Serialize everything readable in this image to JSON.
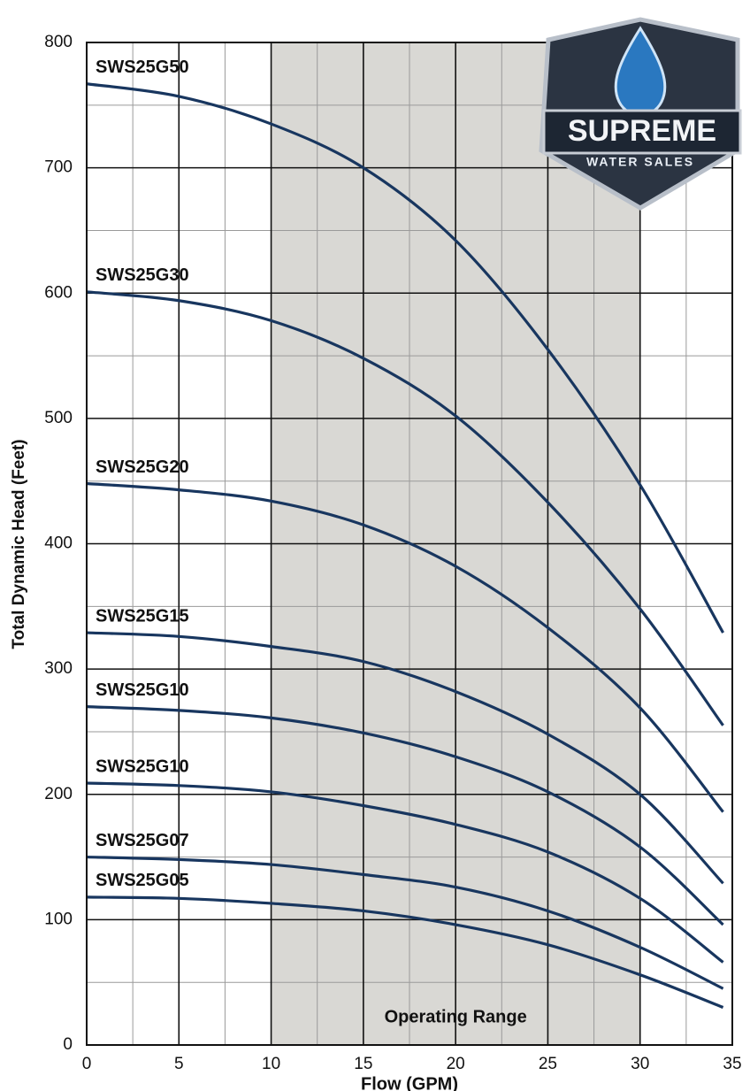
{
  "chart_data": {
    "type": "line",
    "x_label": "Flow (GPM)",
    "y_label": "Total Dynamic Head (Feet)",
    "x": [
      0,
      5,
      10,
      15,
      20,
      25,
      30,
      34.5
    ],
    "series": [
      {
        "name": "SWS25G50",
        "color": "#18365f",
        "values": [
          767,
          757,
          735,
          700,
          642,
          555,
          447,
          329
        ]
      },
      {
        "name": "SWS25G30",
        "color": "#18365f",
        "values": [
          601,
          594,
          578,
          548,
          502,
          433,
          348,
          255
        ]
      },
      {
        "name": "SWS25G20",
        "color": "#18365f",
        "values": [
          448,
          443,
          434,
          415,
          382,
          333,
          269,
          186
        ]
      },
      {
        "name": "SWS25G15",
        "color": "#18365f",
        "values": [
          329,
          326,
          318,
          306,
          282,
          248,
          200,
          129
        ]
      },
      {
        "name": "SWS25G10",
        "color": "#18365f",
        "values": [
          270,
          267,
          261,
          249,
          230,
          202,
          158,
          96
        ]
      },
      {
        "name": "SWS25G10",
        "color": "#18365f",
        "values": [
          209,
          207,
          202,
          191,
          176,
          154,
          117,
          66
        ]
      },
      {
        "name": "SWS25G07",
        "color": "#18365f",
        "values": [
          150,
          148,
          144,
          136,
          126,
          107,
          78,
          45
        ]
      },
      {
        "name": "SWS25G05",
        "color": "#18365f",
        "values": [
          118,
          117,
          113,
          107,
          96,
          80,
          56,
          30
        ]
      }
    ],
    "xlim": [
      0,
      35
    ],
    "ylim": [
      0,
      800
    ],
    "xticks": [
      0,
      5,
      10,
      15,
      20,
      25,
      30,
      35
    ],
    "yticks": [
      0,
      100,
      200,
      300,
      400,
      500,
      600,
      700,
      800
    ],
    "grid": true,
    "operating_range": [
      10,
      30
    ],
    "operating_range_label": "Operating Range"
  },
  "logo": {
    "title": "SUPREME",
    "subtitle": "WATER SALES"
  }
}
